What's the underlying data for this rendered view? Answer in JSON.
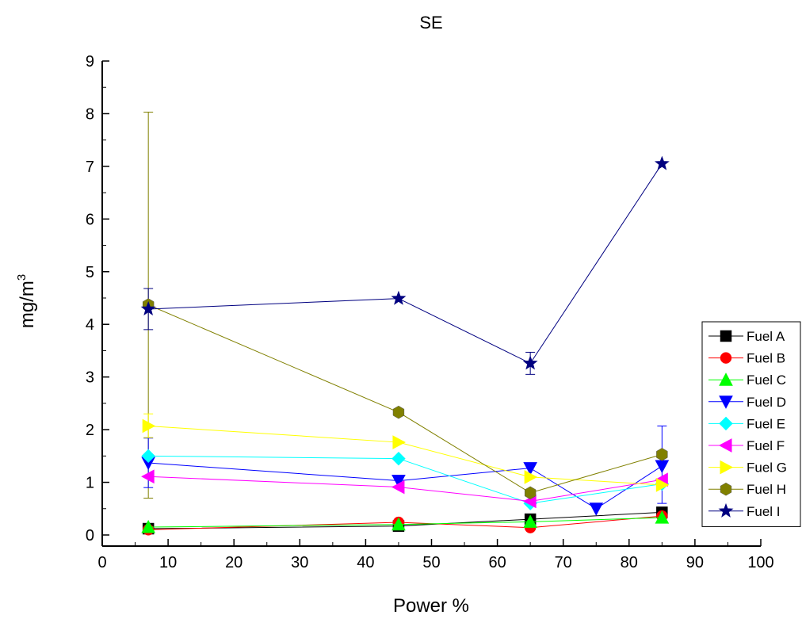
{
  "chart_data": {
    "type": "line",
    "title": "SE",
    "xlabel": "Power %",
    "ylabel_main": "mg/m",
    "ylabel_sup": "3",
    "xlim": [
      0,
      100
    ],
    "ylim": [
      0,
      9
    ],
    "x_ticks": [
      0,
      10,
      20,
      30,
      40,
      50,
      60,
      70,
      80,
      90,
      100
    ],
    "y_ticks": [
      0,
      1,
      2,
      3,
      4,
      5,
      6,
      7,
      8,
      9
    ],
    "grid": false,
    "legend_position": "right",
    "series": [
      {
        "name": "Fuel A",
        "color": "#000000",
        "marker": "square",
        "points": [
          [
            7,
            0.12
          ],
          [
            45,
            0.17
          ],
          [
            65,
            0.3
          ],
          [
            85,
            0.43
          ]
        ]
      },
      {
        "name": "Fuel B",
        "color": "#ff0000",
        "marker": "circle",
        "points": [
          [
            7,
            0.1
          ],
          [
            45,
            0.24
          ],
          [
            65,
            0.14
          ],
          [
            85,
            0.36
          ]
        ]
      },
      {
        "name": "Fuel C",
        "color": "#00ff00",
        "marker": "triangle-up",
        "points": [
          [
            7,
            0.15
          ],
          [
            45,
            0.2
          ],
          [
            65,
            0.25
          ],
          [
            85,
            0.33
          ]
        ]
      },
      {
        "name": "Fuel D",
        "color": "#0000ff",
        "marker": "triangle-down",
        "points": [
          [
            7,
            1.37
          ],
          [
            45,
            1.03
          ],
          [
            65,
            1.27
          ],
          [
            75,
            0.5
          ],
          [
            85,
            1.31
          ]
        ]
      },
      {
        "name": "Fuel E",
        "color": "#00ffff",
        "marker": "diamond",
        "points": [
          [
            7,
            1.5
          ],
          [
            45,
            1.45
          ],
          [
            65,
            0.6
          ],
          [
            85,
            0.97
          ]
        ]
      },
      {
        "name": "Fuel F",
        "color": "#ff00ff",
        "marker": "triangle-left",
        "points": [
          [
            7,
            1.11
          ],
          [
            45,
            0.91
          ],
          [
            65,
            0.64
          ],
          [
            85,
            1.05
          ]
        ]
      },
      {
        "name": "Fuel G",
        "color": "#ffff00",
        "marker": "triangle-right",
        "points": [
          [
            7,
            2.07
          ],
          [
            45,
            1.76
          ],
          [
            65,
            1.1
          ],
          [
            85,
            0.95
          ]
        ]
      },
      {
        "name": "Fuel H",
        "color": "#808000",
        "marker": "hexagon",
        "points": [
          [
            7,
            4.37
          ],
          [
            45,
            2.33
          ],
          [
            65,
            0.8
          ],
          [
            85,
            1.53
          ]
        ]
      },
      {
        "name": "Fuel I",
        "color": "#000080",
        "marker": "star",
        "points": [
          [
            7,
            4.29
          ],
          [
            45,
            4.49
          ],
          [
            65,
            3.26
          ],
          [
            85,
            7.05
          ]
        ]
      }
    ],
    "error_bars": [
      {
        "series": "Fuel H",
        "x": 7,
        "low": 0.7,
        "high": 8.03
      },
      {
        "series": "Fuel I",
        "x": 7,
        "low": 3.9,
        "high": 4.68
      },
      {
        "series": "Fuel I",
        "x": 65,
        "low": 3.05,
        "high": 3.47
      },
      {
        "series": "Fuel D",
        "x": 7,
        "low": 0.9,
        "high": 1.84
      },
      {
        "series": "Fuel G",
        "x": 7,
        "low": 1.85,
        "high": 2.3
      },
      {
        "series": "Fuel D",
        "x": 85,
        "low": 0.6,
        "high": 2.07
      }
    ]
  }
}
